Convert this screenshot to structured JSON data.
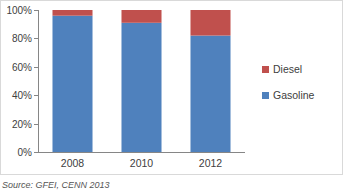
{
  "chart_data": {
    "type": "bar",
    "stacked": true,
    "categories": [
      "2008",
      "2010",
      "2012"
    ],
    "series": [
      {
        "name": "Gasoline",
        "color": "#4f81bd",
        "values": [
          96,
          91,
          82
        ]
      },
      {
        "name": "Diesel",
        "color": "#c0504d",
        "values": [
          4,
          9,
          18
        ]
      }
    ],
    "ylim": [
      0,
      100
    ],
    "yticks": [
      {
        "value": 0,
        "label": "0%"
      },
      {
        "value": 20,
        "label": "20%"
      },
      {
        "value": 40,
        "label": "40%"
      },
      {
        "value": 60,
        "label": "60%"
      },
      {
        "value": 80,
        "label": "80%"
      },
      {
        "value": 100,
        "label": "100%"
      }
    ],
    "grid": false,
    "legend": "right",
    "source": "Source: GFEI, CENN 2013"
  }
}
